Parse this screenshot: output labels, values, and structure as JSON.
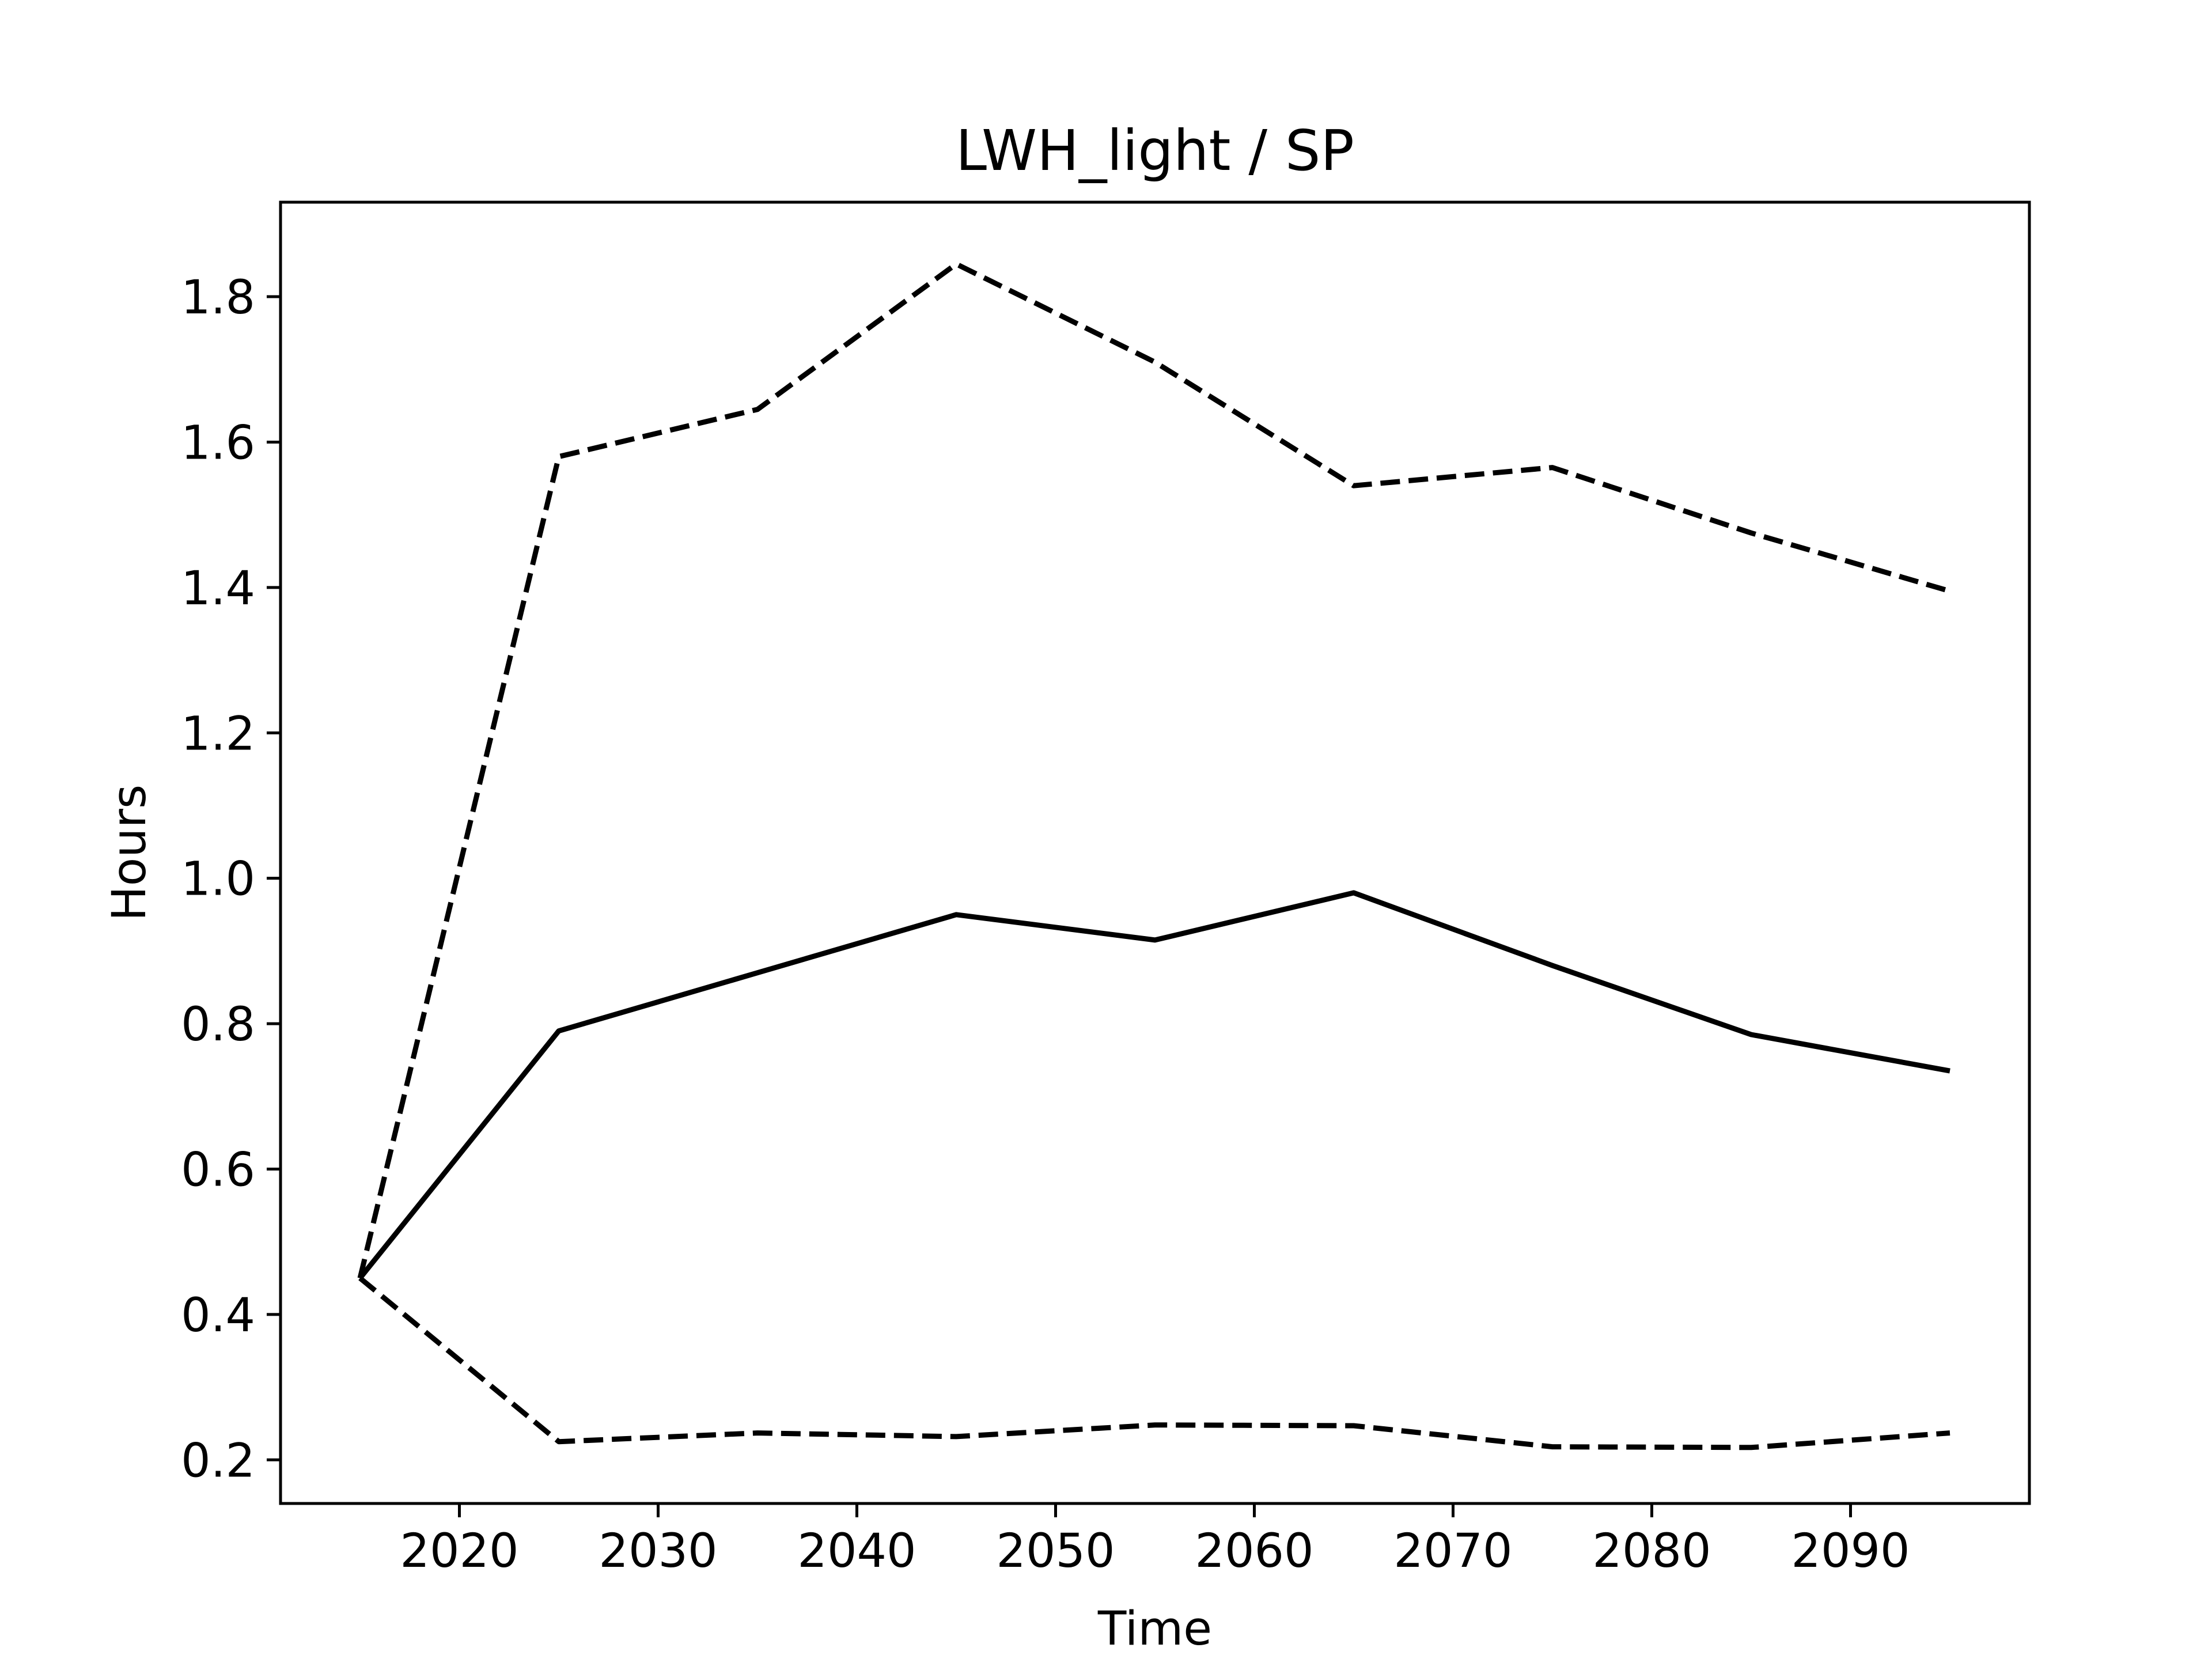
{
  "chart_data": {
    "type": "line",
    "title": "LWH_light / SP",
    "xlabel": "Time",
    "ylabel": "Hours",
    "xlim": [
      2011,
      2099
    ],
    "ylim": [
      0.14,
      1.93
    ],
    "xticks": [
      2020,
      2030,
      2040,
      2050,
      2060,
      2070,
      2080,
      2090
    ],
    "yticks": [
      0.2,
      0.4,
      0.6,
      0.8,
      1.0,
      1.2,
      1.4,
      1.6,
      1.8
    ],
    "ytick_labels": [
      "0.2",
      "0.4",
      "0.6",
      "0.8",
      "1.0",
      "1.2",
      "1.4",
      "1.6",
      "1.8"
    ],
    "grid": false,
    "legend": "none",
    "x": [
      2015,
      2025,
      2035,
      2045,
      2055,
      2065,
      2075,
      2085,
      2095
    ],
    "series": [
      {
        "style": "solid",
        "color": "#000000",
        "values": [
          0.45,
          0.79,
          0.87,
          0.95,
          0.915,
          0.98,
          0.88,
          0.785,
          0.735
        ]
      },
      {
        "style": "dashed",
        "color": "#000000",
        "values": [
          0.45,
          1.58,
          1.645,
          1.845,
          1.71,
          1.54,
          1.565,
          1.475,
          1.395
        ]
      },
      {
        "style": "dashed",
        "color": "#000000",
        "values": [
          0.45,
          0.225,
          0.237,
          0.232,
          0.248,
          0.247,
          0.218,
          0.217,
          0.237
        ]
      }
    ]
  }
}
